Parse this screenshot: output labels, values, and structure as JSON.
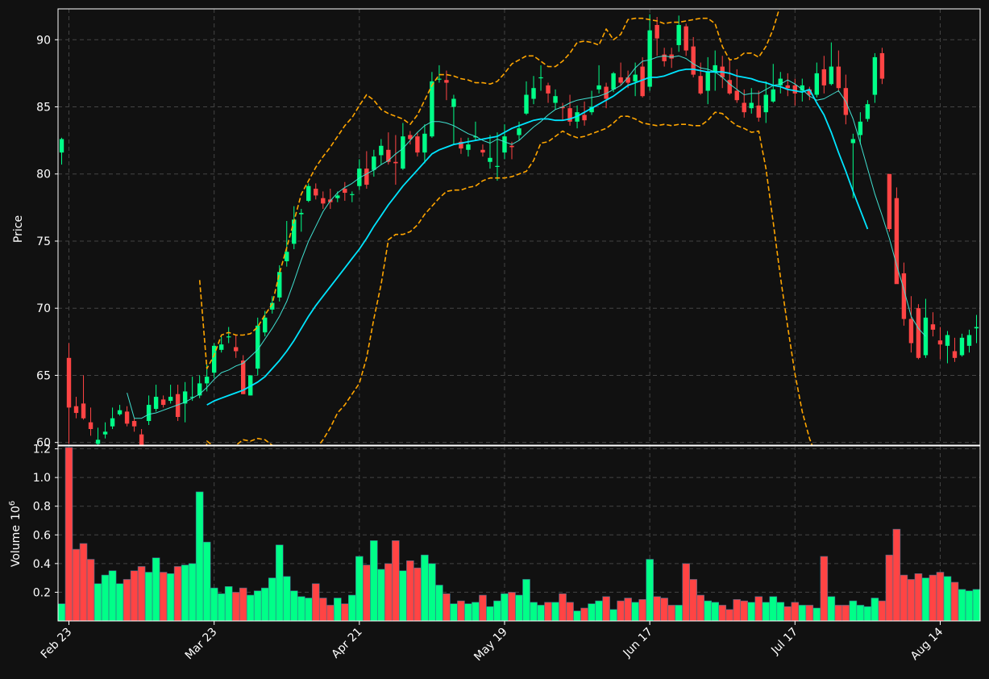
{
  "colors": {
    "background": "#111111",
    "up": "#00ff88",
    "down": "#ff4444",
    "sma_fast": "#40e0d0",
    "sma_slow": "#00e5ff",
    "bollinger": "#ffa500",
    "grid": "#444444",
    "axis_text": "#ffffff"
  },
  "chart_data": {
    "type": "candlestick",
    "price_axis": {
      "label": "Price",
      "ylim": [
        59.8,
        92.3
      ],
      "ticks": [
        60,
        65,
        70,
        75,
        80,
        85,
        90
      ]
    },
    "volume_axis": {
      "label": "Volume",
      "multiplier_base": "10",
      "multiplier_exp": "6",
      "ylim": [
        0,
        1.22
      ],
      "ticks": [
        "0.2",
        "0.4",
        "0.6",
        "0.8",
        "1.0",
        "1.2"
      ]
    },
    "x_ticks": [
      {
        "i": 1,
        "label": "Feb 23"
      },
      {
        "i": 21,
        "label": "Mar 23"
      },
      {
        "i": 41,
        "label": "Apr 21"
      },
      {
        "i": 61,
        "label": "May 19"
      },
      {
        "i": 81,
        "label": "Jun 17"
      },
      {
        "i": 101,
        "label": "Jul 17"
      },
      {
        "i": 121,
        "label": "Aug 14"
      }
    ],
    "grid": true,
    "close": [
      82.6,
      62.6,
      62.2,
      61.8,
      61.0,
      60.2,
      60.8,
      61.8,
      62.4,
      61.4,
      61.2,
      59.8,
      62.8,
      63.4,
      62.8,
      63.4,
      61.9,
      63.8,
      63.4,
      64.4,
      64.9,
      67.2,
      67.3,
      67.9,
      66.8,
      63.6,
      65.0,
      68.7,
      69.3,
      70.4,
      72.7,
      74.2,
      76.6,
      77.1,
      79.1,
      78.4,
      77.8,
      77.9,
      78.4,
      78.6,
      78.5,
      80.4,
      79.2,
      81.3,
      82.1,
      80.9,
      80.8,
      82.8,
      82.6,
      81.6,
      83.0,
      86.9,
      87.1,
      86.8,
      85.6,
      81.9,
      82.2,
      82.8,
      81.6,
      81.2,
      80.6,
      82.8,
      82.0,
      83.4,
      85.9,
      86.4,
      87.2,
      86.0,
      85.8,
      84.9,
      83.9,
      84.6,
      84.0,
      85.0,
      86.6,
      85.6,
      87.5,
      86.8,
      86.8,
      87.4,
      85.8,
      90.7,
      90.1,
      88.4,
      88.6,
      91.1,
      89.2,
      87.4,
      86.0,
      87.6,
      88.1,
      87.2,
      86.0,
      85.5,
      84.6,
      85.3,
      84.2,
      85.9,
      86.3,
      87.1,
      86.4,
      86.0,
      86.6,
      85.9,
      87.5,
      86.6,
      88.0,
      86.4,
      84.4,
      82.6,
      83.9,
      85.2,
      88.7,
      87.1,
      75.9,
      71.8,
      69.2,
      67.4,
      66.3,
      69.3,
      68.4,
      67.3,
      68.0,
      66.3,
      67.8,
      68.0,
      68.6
    ],
    "open": [
      81.6,
      66.3,
      62.7,
      62.9,
      61.5,
      59.9,
      60.6,
      61.2,
      62.1,
      62.3,
      61.6,
      60.6,
      61.6,
      62.5,
      63.2,
      63.1,
      63.6,
      62.9,
      63.4,
      63.5,
      64.4,
      65.2,
      66.9,
      67.9,
      67.1,
      66.1,
      63.5,
      65.5,
      68.2,
      69.9,
      70.8,
      73.5,
      74.8,
      77.0,
      78.0,
      78.9,
      78.2,
      78.1,
      78.2,
      78.9,
      78.5,
      79.1,
      80.4,
      80.3,
      81.4,
      81.8,
      80.9,
      80.4,
      82.9,
      82.8,
      81.6,
      82.8,
      87.1,
      87.0,
      85.0,
      82.4,
      81.8,
      82.8,
      81.8,
      80.9,
      80.6,
      81.6,
      82.1,
      82.9,
      84.5,
      85.6,
      87.2,
      86.6,
      85.3,
      85.0,
      84.9,
      83.9,
      84.4,
      84.6,
      86.3,
      86.5,
      86.3,
      87.2,
      87.2,
      86.9,
      88.0,
      86.5,
      91.1,
      88.9,
      88.9,
      89.6,
      91.0,
      89.5,
      87.3,
      86.2,
      87.6,
      88.0,
      87.0,
      86.2,
      85.3,
      84.9,
      85.1,
      84.6,
      85.4,
      86.6,
      86.6,
      86.6,
      86.2,
      86.3,
      85.9,
      87.8,
      86.7,
      88.0,
      86.4,
      82.3,
      82.9,
      84.1,
      85.9,
      89.0,
      80.0,
      78.2,
      72.6,
      69.2,
      70.0,
      66.5,
      68.8,
      67.6,
      67.2,
      66.8,
      66.5,
      67.2,
      68.5
    ],
    "high": [
      82.7,
      67.4,
      63.4,
      65.0,
      62.6,
      61.1,
      61.5,
      62.6,
      62.8,
      62.7,
      61.8,
      61.0,
      63.5,
      64.3,
      63.5,
      64.3,
      64.3,
      64.5,
      64.9,
      65.0,
      65.8,
      67.4,
      67.9,
      68.6,
      68.0,
      66.5,
      65.0,
      69.3,
      69.8,
      70.9,
      73.2,
      76.5,
      77.6,
      77.4,
      79.3,
      79.3,
      78.7,
      78.9,
      78.7,
      79.4,
      78.7,
      81.1,
      81.7,
      81.8,
      82.6,
      83.1,
      82.9,
      83.8,
      83.2,
      83.1,
      83.7,
      87.6,
      88.1,
      87.7,
      85.9,
      82.7,
      82.7,
      83.9,
      82.2,
      82.9,
      83.1,
      83.7,
      82.4,
      83.9,
      86.9,
      87.3,
      88.1,
      86.8,
      86.3,
      85.3,
      85.9,
      85.1,
      85.4,
      86.2,
      88.1,
      86.8,
      87.6,
      88.3,
      87.7,
      88.3,
      88.7,
      91.9,
      91.7,
      89.4,
      89.4,
      91.8,
      91.2,
      90.2,
      88.3,
      88.7,
      89.2,
      88.8,
      88.6,
      87.8,
      86.3,
      86.4,
      86.2,
      86.9,
      88.2,
      87.6,
      87.5,
      87.1,
      87.1,
      86.5,
      88.3,
      88.8,
      89.8,
      89.2,
      87.4,
      83.0,
      84.6,
      85.5,
      89.0,
      89.4,
      80.0,
      79.0,
      73.4,
      70.9,
      70.3,
      70.7,
      69.7,
      68.6,
      68.3,
      67.8,
      68.1,
      68.4,
      69.5
    ],
    "low": [
      80.7,
      59.9,
      61.8,
      61.7,
      60.5,
      59.8,
      60.3,
      61.0,
      62.0,
      61.2,
      60.8,
      59.8,
      61.3,
      62.3,
      62.6,
      62.9,
      61.6,
      61.5,
      63.1,
      63.3,
      63.8,
      64.8,
      66.7,
      67.4,
      66.3,
      63.6,
      63.5,
      65.0,
      67.9,
      69.6,
      70.5,
      73.1,
      74.4,
      75.7,
      77.9,
      78.1,
      77.4,
      77.4,
      77.9,
      78.0,
      77.9,
      78.8,
      78.9,
      79.8,
      80.7,
      80.7,
      79.2,
      80.3,
      82.2,
      81.3,
      80.8,
      82.7,
      86.8,
      85.5,
      82.2,
      81.5,
      81.3,
      82.5,
      81.3,
      80.4,
      79.5,
      81.1,
      81.1,
      82.5,
      84.4,
      85.2,
      86.2,
      85.3,
      84.8,
      84.0,
      83.6,
      83.4,
      83.6,
      84.4,
      86.0,
      84.9,
      86.1,
      86.6,
      86.4,
      85.8,
      85.7,
      86.2,
      88.8,
      88.0,
      87.9,
      89.1,
      88.8,
      87.2,
      85.9,
      85.2,
      86.2,
      86.4,
      85.9,
      85.3,
      84.2,
      84.5,
      83.9,
      83.8,
      85.3,
      86.0,
      85.8,
      85.1,
      85.4,
      85.5,
      85.7,
      86.0,
      86.6,
      86.1,
      83.7,
      78.2,
      82.2,
      83.9,
      85.3,
      86.7,
      75.7,
      71.9,
      68.7,
      66.7,
      66.2,
      66.3,
      67.9,
      66.2,
      65.9,
      66.0,
      66.4,
      66.7,
      67.4
    ],
    "volume": [
      0.12,
      1.21,
      0.5,
      0.54,
      0.43,
      0.26,
      0.32,
      0.35,
      0.26,
      0.29,
      0.35,
      0.38,
      0.34,
      0.44,
      0.34,
      0.33,
      0.38,
      0.39,
      0.4,
      0.9,
      0.55,
      0.23,
      0.19,
      0.24,
      0.2,
      0.23,
      0.18,
      0.21,
      0.23,
      0.3,
      0.53,
      0.31,
      0.21,
      0.17,
      0.16,
      0.26,
      0.16,
      0.11,
      0.16,
      0.12,
      0.18,
      0.45,
      0.39,
      0.56,
      0.36,
      0.4,
      0.56,
      0.35,
      0.42,
      0.37,
      0.46,
      0.4,
      0.25,
      0.19,
      0.12,
      0.14,
      0.12,
      0.13,
      0.18,
      0.1,
      0.14,
      0.19,
      0.2,
      0.18,
      0.29,
      0.13,
      0.11,
      0.13,
      0.13,
      0.19,
      0.13,
      0.07,
      0.09,
      0.12,
      0.14,
      0.17,
      0.08,
      0.14,
      0.16,
      0.13,
      0.15,
      0.43,
      0.17,
      0.16,
      0.11,
      0.11,
      0.4,
      0.29,
      0.18,
      0.14,
      0.13,
      0.11,
      0.08,
      0.15,
      0.14,
      0.13,
      0.17,
      0.13,
      0.17,
      0.13,
      0.1,
      0.13,
      0.11,
      0.11,
      0.09,
      0.45,
      0.17,
      0.11,
      0.11,
      0.14,
      0.11,
      0.1,
      0.16,
      0.14,
      0.46,
      0.64,
      0.32,
      0.29,
      0.33,
      0.3,
      0.32,
      0.34,
      0.31,
      0.27,
      0.22,
      0.21,
      0.22
    ],
    "sma_fast": {
      "start": 9,
      "values": [
        63.7,
        61.8,
        61.8,
        62.1,
        62.2,
        62.4,
        62.6,
        62.8,
        63.0,
        63.3,
        63.6,
        64.1,
        64.7,
        65.2,
        65.4,
        65.7,
        65.9,
        66.4,
        66.9,
        67.7,
        68.5,
        69.4,
        70.5,
        72.0,
        73.6,
        75.0,
        76.1,
        77.2,
        78.0,
        78.6,
        79.0,
        79.3,
        79.7,
        80.0,
        80.3,
        80.7,
        81.0,
        81.5,
        81.9,
        82.5,
        83.1,
        83.6,
        83.9,
        83.9,
        83.8,
        83.6,
        83.3,
        83.0,
        82.8,
        82.5,
        82.3,
        82.6,
        82.4,
        82.2,
        82.5,
        83.0,
        83.5,
        83.9,
        84.4,
        84.8,
        85.0,
        85.3,
        85.5,
        85.6,
        85.7,
        85.8,
        86.0,
        86.3,
        86.6,
        87.2,
        87.9,
        88.4,
        88.5,
        88.7,
        88.8,
        88.7,
        88.8,
        88.6,
        88.2,
        87.9,
        87.8,
        87.6,
        87.2,
        86.7,
        86.3,
        85.9,
        86.0,
        86.0,
        86.3,
        86.6,
        86.7,
        87.0,
        86.7,
        86.3,
        85.8,
        85.5,
        85.6,
        85.9,
        86.2,
        85.4,
        84.1,
        82.3,
        80.4,
        78.5,
        76.9,
        75.2,
        73.2,
        71.4,
        69.4,
        68.5,
        67.9
      ]
    },
    "sma_slow": {
      "start": 20,
      "values": [
        62.8,
        63.1,
        63.3,
        63.5,
        63.7,
        63.9,
        64.2,
        64.5,
        64.9,
        65.5,
        66.1,
        66.8,
        67.6,
        68.5,
        69.4,
        70.2,
        70.9,
        71.6,
        72.3,
        73.0,
        73.7,
        74.4,
        75.2,
        76.1,
        76.9,
        77.7,
        78.4,
        79.1,
        79.7,
        80.3,
        80.9,
        81.5,
        81.8,
        82.0,
        82.2,
        82.3,
        82.4,
        82.5,
        82.6,
        82.7,
        82.8,
        83.1,
        83.4,
        83.6,
        83.8,
        84.0,
        84.1,
        84.1,
        84.0,
        84.0,
        84.1,
        84.3,
        84.6,
        84.9,
        85.2,
        85.5,
        85.8,
        86.2,
        86.6,
        86.8,
        87.0,
        87.2,
        87.2,
        87.3,
        87.5,
        87.7,
        87.8,
        87.8,
        87.7,
        87.6,
        87.6,
        87.6,
        87.5,
        87.3,
        87.2,
        87.1,
        86.9,
        86.8,
        86.6,
        86.5,
        86.3,
        86.2,
        86.1,
        86.3,
        85.3,
        84.4,
        83.1,
        81.6,
        80.2,
        78.7,
        77.3,
        75.9
      ]
    },
    "bb_upper": {
      "start": 19,
      "values": [
        72.1,
        65.5,
        66.5,
        68.0,
        68.2,
        68.0,
        68.0,
        68.1,
        68.6,
        69.5,
        70.3,
        72.6,
        74.5,
        76.5,
        78.5,
        79.5,
        80.5,
        81.3,
        82.0,
        82.8,
        83.6,
        84.2,
        85.1,
        85.9,
        85.5,
        84.8,
        84.5,
        84.3,
        84.1,
        83.7,
        84.4,
        85.5,
        86.6,
        87.4,
        87.4,
        87.3,
        87.1,
        87.0,
        86.8,
        86.8,
        86.7,
        86.9,
        87.5,
        88.2,
        88.5,
        88.8,
        88.8,
        88.4,
        88.0,
        88.0,
        88.4,
        89.0,
        89.8,
        89.9,
        89.8,
        89.6,
        90.8,
        90.0,
        90.4,
        91.5,
        91.6,
        91.6,
        91.5,
        91.4,
        91.2,
        91.3,
        91.3,
        91.4,
        91.5,
        91.6,
        91.6,
        91.2,
        89.5,
        88.5,
        88.6,
        89.0,
        89.0,
        88.7,
        89.5,
        90.8,
        92.6
      ]
    },
    "bb_lower": {
      "start": 19,
      "values": [
        52.0,
        60.1,
        59.7,
        59.3,
        59.4,
        59.8,
        60.2,
        60.1,
        60.3,
        60.2,
        59.8,
        59.1,
        58.5,
        58.6,
        58.9,
        59.1,
        59.5,
        60.2,
        61.1,
        62.2,
        62.8,
        63.6,
        64.4,
        66.3,
        69.2,
        71.8,
        75.1,
        75.5,
        75.5,
        75.7,
        76.2,
        77.0,
        77.6,
        78.2,
        78.7,
        78.8,
        78.8,
        79.0,
        79.1,
        79.5,
        79.7,
        79.7,
        79.7,
        79.8,
        80.0,
        80.2,
        81.0,
        82.3,
        82.4,
        82.8,
        83.2,
        82.9,
        82.7,
        82.8,
        83.0,
        83.2,
        83.4,
        83.8,
        84.3,
        84.3,
        84.1,
        83.8,
        83.7,
        83.6,
        83.7,
        83.6,
        83.7,
        83.7,
        83.6,
        83.6,
        84.0,
        84.6,
        84.5,
        84.0,
        83.6,
        83.4,
        83.1,
        83.2,
        80.4,
        76.4,
        72.3,
        68.6,
        65.1,
        62.3,
        60.3,
        58.9
      ]
    }
  }
}
